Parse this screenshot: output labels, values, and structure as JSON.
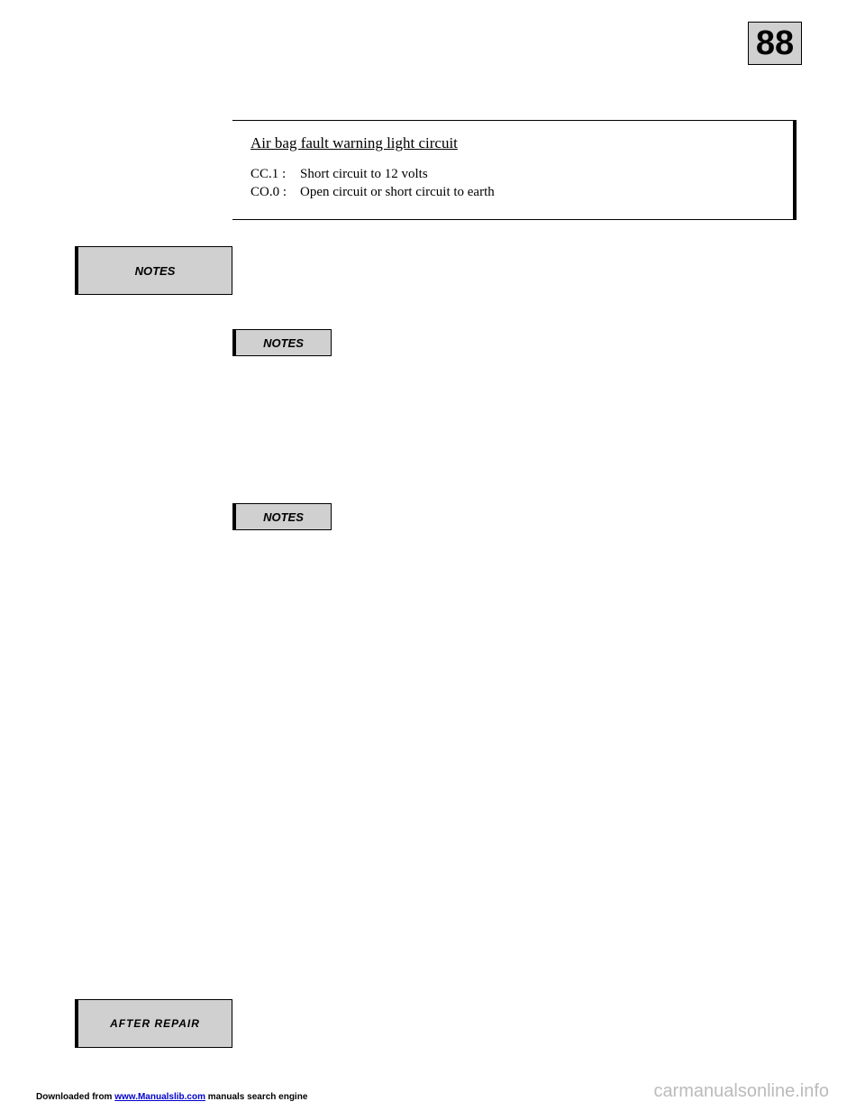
{
  "page_number": "88",
  "fault": {
    "title": "Air bag fault warning light circuit",
    "codes": [
      {
        "label": "CC.1 :",
        "desc": "Short circuit to 12 volts"
      },
      {
        "label": "CO.0 :",
        "desc": "Open circuit or short circuit to earth"
      }
    ]
  },
  "labels": {
    "notes_main": "NOTES",
    "notes_inline1": "NOTES",
    "notes_inline2": "NOTES",
    "after_repair": "AFTER  REPAIR"
  },
  "footer": {
    "left_prefix": "Downloaded from ",
    "left_link": "www.Manualslib.com",
    "left_suffix": " manuals search engine",
    "right": "carmanualsonline.info"
  },
  "colors": {
    "box_gray": "#d0d0d0",
    "page_bg": "#ffffff",
    "watermark_gray": "#bbbbbb",
    "link_blue": "#0000cc"
  }
}
